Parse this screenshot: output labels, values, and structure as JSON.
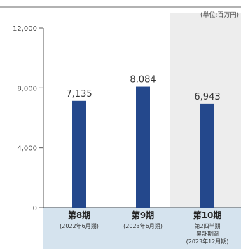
{
  "chart_data": {
    "type": "bar",
    "unit_note": "(単位:百万円)",
    "categories": [
      {
        "label": "第8期",
        "sub": [
          "(2022年6月期)"
        ]
      },
      {
        "label": "第9期",
        "sub": [
          "(2023年6月期)"
        ]
      },
      {
        "label": "第10期",
        "sub": [
          "第2四半期",
          "累計期間",
          "(2023年12月期)"
        ],
        "highlight": true
      }
    ],
    "values": [
      7135,
      8084,
      6943
    ],
    "value_labels": [
      "7,135",
      "8,084",
      "6,943"
    ],
    "ylim": [
      0,
      12000
    ],
    "y_ticks": [
      0,
      4000,
      8000,
      12000
    ],
    "y_tick_labels": [
      "0",
      "4,000",
      "8,000",
      "12,000"
    ],
    "grid": false,
    "colors": {
      "bar": "#24488c",
      "highlight_bg": "#ededed",
      "label_band": "#d5e3ee",
      "axis": "#555555",
      "top_rule": "#666666"
    }
  }
}
